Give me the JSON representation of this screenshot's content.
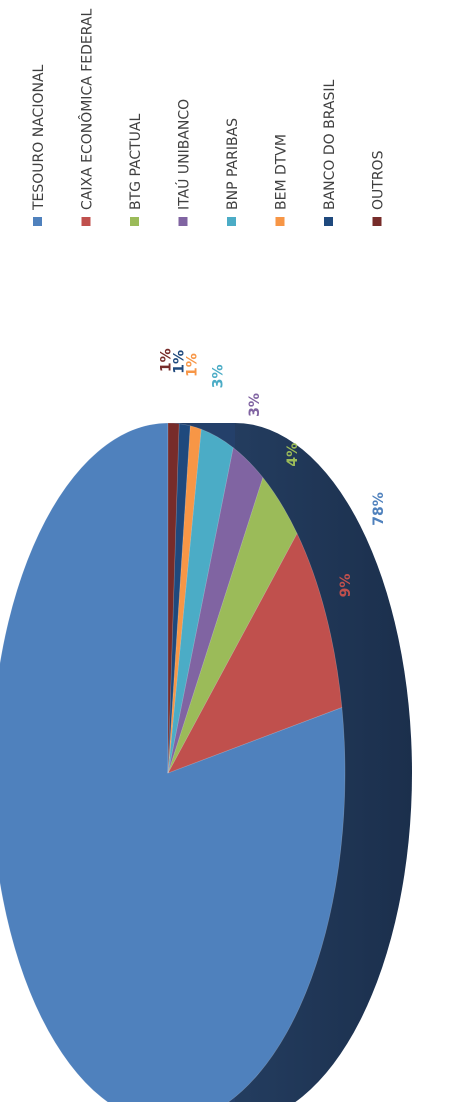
{
  "chart_data": {
    "type": "pie",
    "title": "",
    "legend_position": "right",
    "series": [
      {
        "name": "TESOURO NACIONAL",
        "value": 78,
        "label": "78%",
        "color": "#4F81BD"
      },
      {
        "name": "CAIXA  ECONÔMICA FEDERAL",
        "value": 9,
        "label": "9%",
        "color": "#C0504D"
      },
      {
        "name": "BTG PACTUAL",
        "value": 4,
        "label": "4%",
        "color": "#9BBB59"
      },
      {
        "name": "ITAÚ UNIBANCO",
        "value": 3,
        "label": "3%",
        "color": "#8064A2"
      },
      {
        "name": "BNP PARIBAS",
        "value": 3,
        "label": "3%",
        "color": "#4BACC6"
      },
      {
        "name": "BEM DTVM",
        "value": 1,
        "label": "1%",
        "color": "#F79646"
      },
      {
        "name": "BANCO DO BRASIL",
        "value": 1,
        "label": "1%",
        "color": "#1F497D"
      },
      {
        "name": "OUTROS",
        "value": 1,
        "label": "1%",
        "color": "#772C2A"
      }
    ]
  }
}
